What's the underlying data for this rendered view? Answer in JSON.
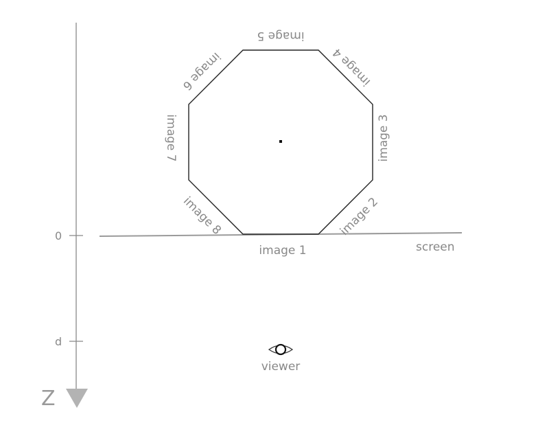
{
  "axis": {
    "name": "Z",
    "ticks": [
      {
        "label": "0"
      },
      {
        "label": "d"
      }
    ]
  },
  "screen": {
    "label": "screen"
  },
  "viewer": {
    "label": "viewer"
  },
  "images": [
    "image 1",
    "image 2",
    "image 3",
    "image 4",
    "image 5",
    "image 6",
    "image 7",
    "image 8"
  ],
  "colors": {
    "axis": "#888888",
    "outline": "#222222",
    "label": "#888888"
  }
}
